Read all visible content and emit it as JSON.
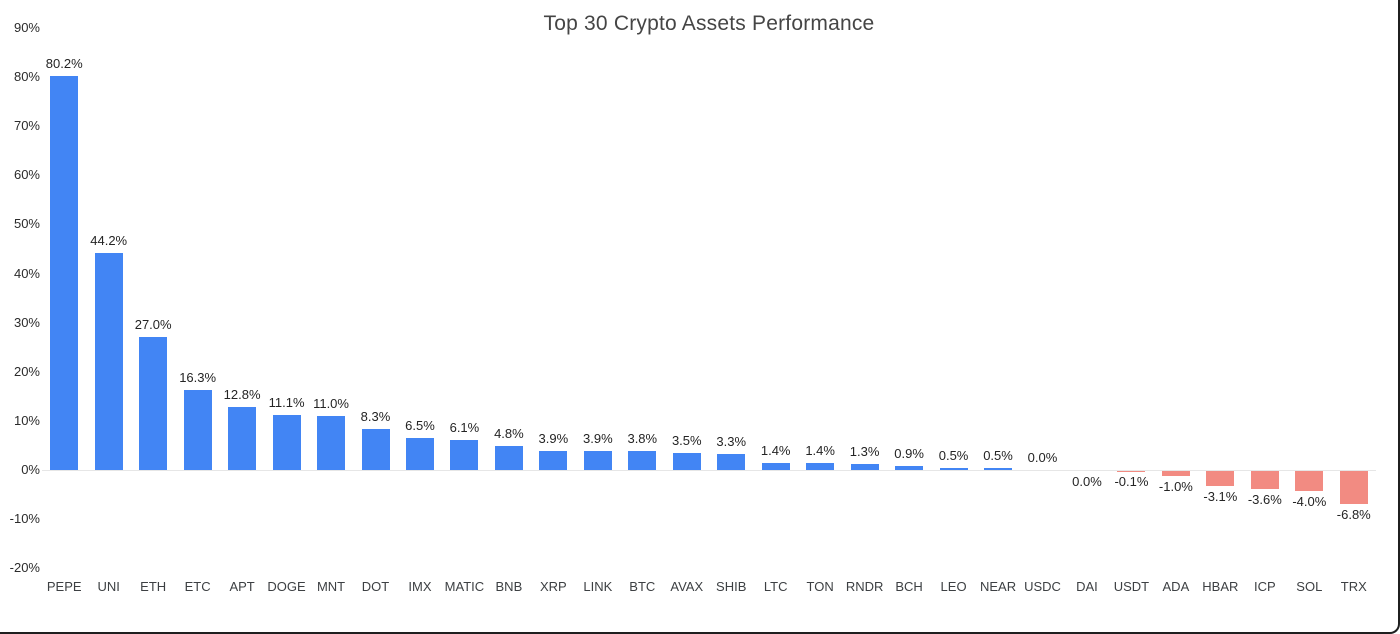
{
  "chart_data": {
    "type": "bar",
    "title": "Top 30 Crypto Assets Performance",
    "xlabel": "",
    "ylabel": "",
    "ylim": [
      -20,
      90
    ],
    "grid": false,
    "legend": "none",
    "yticks": [
      {
        "label": "90%",
        "value": 90
      },
      {
        "label": "80%",
        "value": 80
      },
      {
        "label": "70%",
        "value": 70
      },
      {
        "label": "60%",
        "value": 60
      },
      {
        "label": "50%",
        "value": 50
      },
      {
        "label": "40%",
        "value": 40
      },
      {
        "label": "30%",
        "value": 30
      },
      {
        "label": "20%",
        "value": 20
      },
      {
        "label": "10%",
        "value": 10
      },
      {
        "label": "0%",
        "value": 0
      },
      {
        "label": "-10%",
        "value": -10
      },
      {
        "label": "-20%",
        "value": -20
      }
    ],
    "points": [
      {
        "category": "PEPE",
        "value": 80.2,
        "display": "80.2%"
      },
      {
        "category": "UNI",
        "value": 44.2,
        "display": "44.2%"
      },
      {
        "category": "ETH",
        "value": 27.0,
        "display": "27.0%"
      },
      {
        "category": "ETC",
        "value": 16.3,
        "display": "16.3%"
      },
      {
        "category": "APT",
        "value": 12.8,
        "display": "12.8%"
      },
      {
        "category": "DOGE",
        "value": 11.1,
        "display": "11.1%"
      },
      {
        "category": "MNT",
        "value": 11.0,
        "display": "11.0%"
      },
      {
        "category": "DOT",
        "value": 8.3,
        "display": "8.3%"
      },
      {
        "category": "IMX",
        "value": 6.5,
        "display": "6.5%"
      },
      {
        "category": "MATIC",
        "value": 6.1,
        "display": "6.1%"
      },
      {
        "category": "BNB",
        "value": 4.8,
        "display": "4.8%"
      },
      {
        "category": "XRP",
        "value": 3.9,
        "display": "3.9%"
      },
      {
        "category": "LINK",
        "value": 3.9,
        "display": "3.9%"
      },
      {
        "category": "BTC",
        "value": 3.8,
        "display": "3.8%"
      },
      {
        "category": "AVAX",
        "value": 3.5,
        "display": "3.5%"
      },
      {
        "category": "SHIB",
        "value": 3.3,
        "display": "3.3%"
      },
      {
        "category": "LTC",
        "value": 1.4,
        "display": "1.4%"
      },
      {
        "category": "TON",
        "value": 1.4,
        "display": "1.4%"
      },
      {
        "category": "RNDR",
        "value": 1.3,
        "display": "1.3%"
      },
      {
        "category": "BCH",
        "value": 0.9,
        "display": "0.9%"
      },
      {
        "category": "LEO",
        "value": 0.5,
        "display": "0.5%"
      },
      {
        "category": "NEAR",
        "value": 0.5,
        "display": "0.5%"
      },
      {
        "category": "USDC",
        "value": 0.0,
        "display": "0.0%"
      },
      {
        "category": "DAI",
        "value": 0.0,
        "display": "0.0%",
        "label_below": true
      },
      {
        "category": "USDT",
        "value": -0.1,
        "display": "-0.1%"
      },
      {
        "category": "ADA",
        "value": -1.0,
        "display": "-1.0%"
      },
      {
        "category": "HBAR",
        "value": -3.1,
        "display": "-3.1%"
      },
      {
        "category": "ICP",
        "value": -3.6,
        "display": "-3.6%"
      },
      {
        "category": "SOL",
        "value": -4.0,
        "display": "-4.0%"
      },
      {
        "category": "TRX",
        "value": -6.8,
        "display": "-6.8%"
      }
    ],
    "colors": {
      "positive_bar": "#4285F4",
      "negative_bar": "#F28B82",
      "zero_line": "#E6E6E6",
      "title_text": "#454545",
      "tick_text": "#2B2B2B",
      "category_text": "#3D4043",
      "frame_border": "#1F1F1F"
    }
  }
}
